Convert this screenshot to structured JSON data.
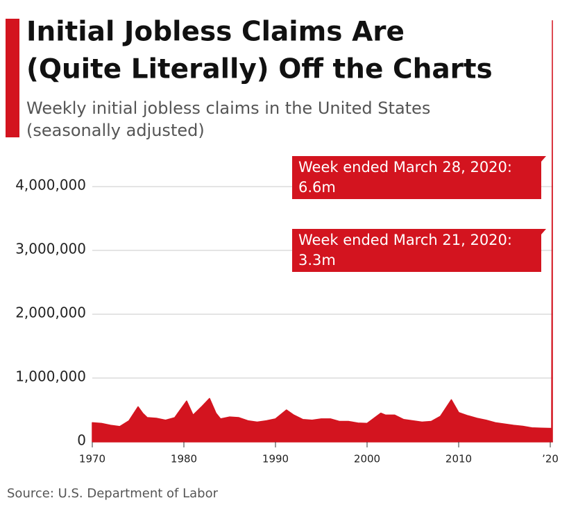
{
  "chart_data": {
    "type": "area",
    "title": [
      "Initial Jobless Claims Are",
      "(Quite Literally) Off the Charts"
    ],
    "subtitle": [
      "Weekly initial jobless claims in the United States",
      "(seasonally adjusted)"
    ],
    "source": "Source: U.S. Department of Labor",
    "color": "#d3141f",
    "annotations": [
      {
        "lines": [
          "Week ended March 28, 2020:",
          "6.6m"
        ]
      },
      {
        "lines": [
          "Week ended March 21, 2020:",
          "3.3m"
        ]
      }
    ],
    "x": [
      1970,
      1971,
      1972,
      1973,
      1974,
      1975,
      1975.5,
      1976,
      1977,
      1978,
      1979,
      1980.3,
      1981,
      1982,
      1982.8,
      1983.5,
      1984,
      1985,
      1986,
      1987,
      1988,
      1989,
      1990,
      1991.2,
      1992,
      1993,
      1994,
      1995,
      1996,
      1997,
      1998,
      1999,
      2000,
      2001.5,
      2002,
      2003,
      2004,
      2005,
      2006,
      2007,
      2008,
      2009.2,
      2010,
      2011,
      2012,
      2013,
      2014,
      2015,
      2016,
      2017,
      2018,
      2019,
      2020.15,
      2020.2,
      2020.23
    ],
    "values": [
      300000,
      290000,
      260000,
      240000,
      330000,
      550000,
      450000,
      380000,
      370000,
      340000,
      380000,
      640000,
      420000,
      560000,
      680000,
      450000,
      360000,
      390000,
      380000,
      330000,
      310000,
      330000,
      360000,
      500000,
      420000,
      350000,
      340000,
      360000,
      360000,
      320000,
      320000,
      295000,
      290000,
      450000,
      420000,
      420000,
      350000,
      330000,
      310000,
      320000,
      400000,
      660000,
      460000,
      410000,
      370000,
      340000,
      300000,
      280000,
      260000,
      245000,
      220000,
      215000,
      211000,
      3300000,
      6600000
    ],
    "xlim": [
      1970,
      2020.3
    ],
    "ylim": [
      0,
      6900000
    ],
    "xticks": [
      1970,
      1980,
      1990,
      2000,
      2010,
      {
        "value": 2020,
        "label": "’20"
      }
    ],
    "yticks": [
      0,
      {
        "value": 1000000,
        "label": "1,000,000"
      },
      {
        "value": 2000000,
        "label": "2,000,000"
      },
      {
        "value": 3000000,
        "label": "3,000,000"
      },
      {
        "value": 4000000,
        "label": "4,000,000"
      }
    ],
    "grid": true
  }
}
